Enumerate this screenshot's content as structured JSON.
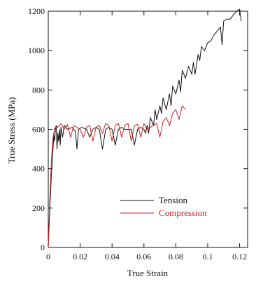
{
  "chart_data": {
    "type": "line",
    "title": "",
    "xlabel": "True Strain",
    "ylabel": "True Stress (MPa)",
    "xlim": [
      0,
      0.125
    ],
    "ylim": [
      0,
      1200
    ],
    "xticks": [
      0,
      0.02,
      0.04,
      0.06,
      0.08,
      0.1,
      0.12
    ],
    "xtick_labels": [
      "0",
      "0.02",
      "0.04",
      "0.06",
      "0.08",
      "0.1",
      "0.12"
    ],
    "yticks": [
      0,
      200,
      400,
      600,
      800,
      1000,
      1200
    ],
    "ytick_labels": [
      "0",
      "200",
      "400",
      "600",
      "800",
      "1000",
      "1200"
    ],
    "grid": false,
    "legend_position": "lower-right",
    "series": [
      {
        "name": "Tension",
        "color": "#111111",
        "x": [
          0,
          0.001,
          0.002,
          0.003,
          0.0035,
          0.004,
          0.0045,
          0.005,
          0.0055,
          0.006,
          0.0065,
          0.007,
          0.0075,
          0.008,
          0.009,
          0.01,
          0.012,
          0.015,
          0.017,
          0.018,
          0.019,
          0.021,
          0.024,
          0.026,
          0.028,
          0.03,
          0.032,
          0.034,
          0.036,
          0.038,
          0.04,
          0.042,
          0.044,
          0.046,
          0.048,
          0.05,
          0.052,
          0.054,
          0.056,
          0.058,
          0.06,
          0.061,
          0.062,
          0.063,
          0.064,
          0.066,
          0.067,
          0.068,
          0.07,
          0.071,
          0.072,
          0.074,
          0.076,
          0.077,
          0.078,
          0.08,
          0.082,
          0.083,
          0.084,
          0.086,
          0.088,
          0.09,
          0.091,
          0.092,
          0.094,
          0.095,
          0.096,
          0.098,
          0.1,
          0.102,
          0.104,
          0.106,
          0.108,
          0.109,
          0.11,
          0.112,
          0.114,
          0.116,
          0.118,
          0.12,
          0.121
        ],
        "y": [
          0,
          200,
          380,
          500,
          570,
          540,
          600,
          620,
          500,
          580,
          540,
          600,
          520,
          610,
          560,
          620,
          600,
          610,
          590,
          500,
          600,
          610,
          600,
          560,
          600,
          610,
          600,
          500,
          600,
          610,
          600,
          520,
          600,
          610,
          600,
          600,
          600,
          520,
          600,
          610,
          600,
          580,
          620,
          580,
          660,
          620,
          700,
          650,
          720,
          680,
          760,
          700,
          780,
          720,
          820,
          780,
          850,
          790,
          900,
          860,
          920,
          880,
          940,
          880,
          980,
          950,
          1020,
          1000,
          1040,
          1050,
          1080,
          1100,
          1120,
          1030,
          1150,
          1160,
          1160,
          1180,
          1200,
          1210,
          1150
        ]
      },
      {
        "name": "Compression",
        "color": "#cc2222",
        "x": [
          0,
          0.001,
          0.002,
          0.003,
          0.004,
          0.005,
          0.006,
          0.008,
          0.01,
          0.012,
          0.014,
          0.016,
          0.018,
          0.02,
          0.022,
          0.024,
          0.026,
          0.028,
          0.03,
          0.032,
          0.034,
          0.036,
          0.038,
          0.04,
          0.042,
          0.044,
          0.046,
          0.048,
          0.05,
          0.052,
          0.054,
          0.056,
          0.058,
          0.06,
          0.062,
          0.064,
          0.066,
          0.068,
          0.07,
          0.072,
          0.074,
          0.076,
          0.078,
          0.08,
          0.082,
          0.084,
          0.086
        ],
        "y": [
          0,
          250,
          450,
          560,
          600,
          620,
          610,
          630,
          600,
          625,
          560,
          620,
          610,
          600,
          560,
          610,
          620,
          540,
          610,
          620,
          580,
          630,
          620,
          540,
          620,
          630,
          560,
          620,
          630,
          540,
          620,
          625,
          560,
          630,
          600,
          610,
          620,
          630,
          560,
          640,
          660,
          620,
          680,
          700,
          650,
          720,
          700
        ]
      }
    ]
  }
}
